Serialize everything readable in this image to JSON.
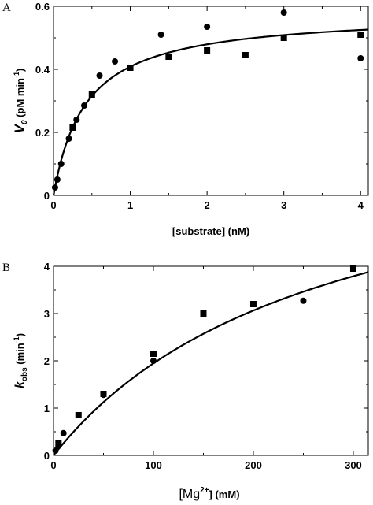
{
  "chart_data": [
    {
      "type": "scatter",
      "panel_label": "A",
      "xlabel": "[substrate]  (nM)",
      "ylabel_main": "V",
      "ylabel_sub": "0",
      "ylabel_rest": "  (pM min",
      "ylabel_sup": "-1",
      "ylabel_end": ")",
      "xlim": [
        0,
        4.1
      ],
      "ylim": [
        0,
        0.6
      ],
      "xticks": [
        0,
        1,
        2,
        3,
        4
      ],
      "yticks": [
        0,
        0.2,
        0.4,
        0.6
      ],
      "xtick_labels": [
        "0",
        "1",
        "2",
        "3",
        "4"
      ],
      "ytick_labels": [
        "0",
        "0.2",
        "0.4",
        "0.6"
      ],
      "fit": {
        "model": "michaelis-menten",
        "vmax": 0.58,
        "km": 0.42
      },
      "series": [
        {
          "marker": "circle",
          "x": [
            0.02,
            0.05,
            0.1,
            0.2,
            0.3,
            0.4,
            0.6,
            0.8,
            1.4,
            2.0,
            3.0,
            4.0
          ],
          "y": [
            0.025,
            0.05,
            0.1,
            0.18,
            0.24,
            0.285,
            0.38,
            0.425,
            0.51,
            0.535,
            0.58,
            0.435
          ]
        },
        {
          "marker": "square",
          "x": [
            0.25,
            0.5,
            1.0,
            1.5,
            2.0,
            2.5,
            3.0,
            4.0
          ],
          "y": [
            0.215,
            0.32,
            0.405,
            0.44,
            0.46,
            0.445,
            0.5,
            0.51
          ]
        }
      ]
    },
    {
      "type": "scatter",
      "panel_label": "B",
      "xlabel_pre": "[Mg",
      "xlabel_sup": "2+",
      "xlabel_post": "]  (mM)",
      "ylabel_main": "k",
      "ylabel_sub": "obs",
      "ylabel_rest": "  (min",
      "ylabel_sup": "-1",
      "ylabel_end": ")",
      "xlim": [
        0,
        315
      ],
      "ylim": [
        0,
        4
      ],
      "xticks": [
        0,
        100,
        200,
        300
      ],
      "yticks": [
        0,
        1,
        2,
        3,
        4
      ],
      "xtick_labels": [
        "0",
        "100",
        "200",
        "300"
      ],
      "ytick_labels": [
        "0",
        "1",
        "2",
        "3",
        "4"
      ],
      "fit": {
        "model": "hyperbolic",
        "vmax": 7.2,
        "k": 270
      },
      "series": [
        {
          "marker": "circle",
          "x": [
            2,
            5,
            10,
            50,
            100,
            250
          ],
          "y": [
            0.1,
            0.2,
            0.47,
            1.28,
            2.0,
            3.27
          ]
        },
        {
          "marker": "square",
          "x": [
            5,
            25,
            50,
            100,
            150,
            200,
            300
          ],
          "y": [
            0.25,
            0.85,
            1.3,
            2.15,
            3.0,
            3.2,
            3.95
          ]
        }
      ]
    }
  ]
}
